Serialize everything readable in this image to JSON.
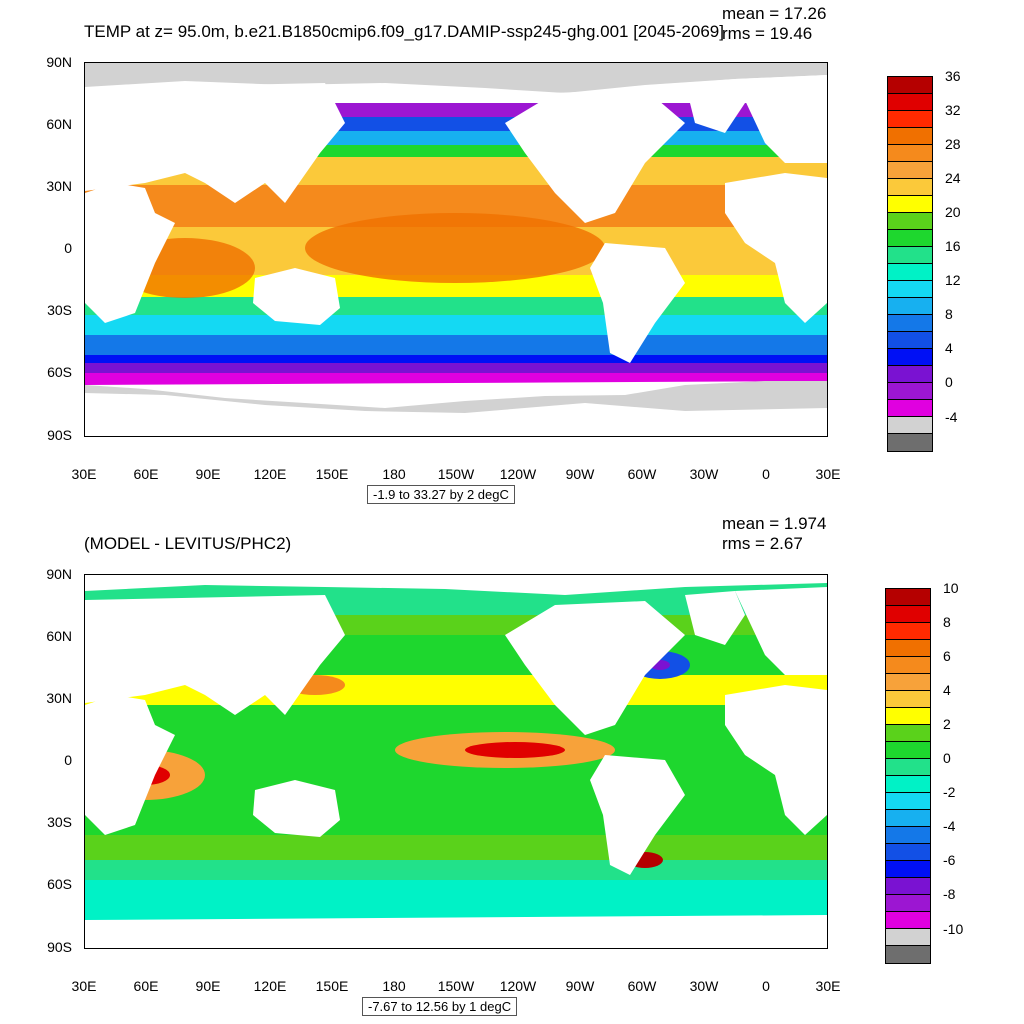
{
  "top": {
    "title": "TEMP at z=  95.0m, b.e21.B1850cmip6.f09_g17.DAMIP-ssp245-ghg.001 [2045-2069]",
    "mean": "mean = 17.26",
    "rms": "rms = 19.46",
    "range": "-1.9 to 33.27 by 2 degC",
    "colorbar_labels": [
      "36",
      "32",
      "28",
      "24",
      "20",
      "16",
      "12",
      "8",
      "4",
      "0",
      "-4"
    ],
    "colorbar_colors": [
      "#b50000",
      "#e00000",
      "#ff2a00",
      "#f07000",
      "#f58a1c",
      "#f7a23a",
      "#fbc93a",
      "#ffff00",
      "#5ad21b",
      "#1ed72e",
      "#22e18a",
      "#00f2c6",
      "#14d9f3",
      "#17b0f0",
      "#1478e8",
      "#1250e6",
      "#0010f5",
      "#7a12d2",
      "#9c16d2",
      "#e000e0",
      "#d2d2d2",
      "#6e6e6e"
    ]
  },
  "bottom": {
    "title": "(MODEL - LEVITUS/PHC2)",
    "mean": "mean = 1.974",
    "rms": "rms = 2.67",
    "range": "-7.67 to 12.56 by 1 degC",
    "colorbar_labels": [
      "10",
      "8",
      "6",
      "4",
      "2",
      "0",
      "-2",
      "-4",
      "-6",
      "-8",
      "-10"
    ],
    "colorbar_colors": [
      "#b50000",
      "#e00000",
      "#ff2a00",
      "#f07000",
      "#f58a1c",
      "#f7a23a",
      "#fbc93a",
      "#ffff00",
      "#5ad21b",
      "#1ed72e",
      "#22e18a",
      "#00f2c6",
      "#14d9f3",
      "#17b0f0",
      "#1478e8",
      "#1250e6",
      "#0010f5",
      "#7a12d2",
      "#9c16d2",
      "#e000e0",
      "#d2d2d2",
      "#6e6e6e"
    ]
  },
  "lat_labels": [
    "90N",
    "60N",
    "30N",
    "0",
    "30S",
    "60S",
    "90S"
  ],
  "lon_labels": [
    "30E",
    "60E",
    "90E",
    "120E",
    "150E",
    "180",
    "150W",
    "120W",
    "90W",
    "60W",
    "30W",
    "0",
    "30E"
  ]
}
